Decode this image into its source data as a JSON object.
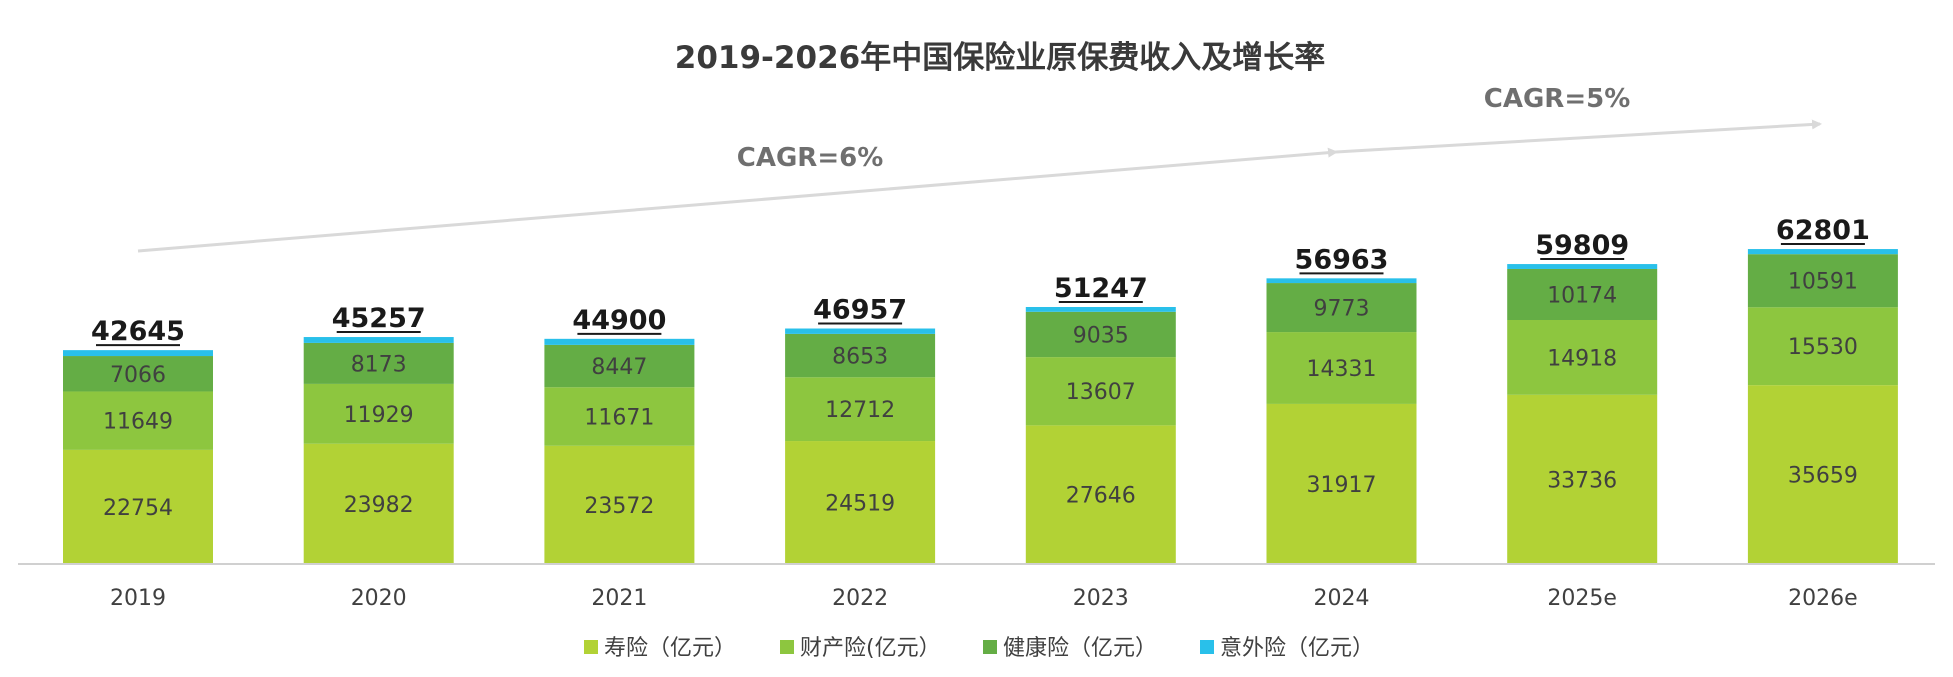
{
  "chart_data": {
    "type": "bar",
    "stacked": true,
    "title": "2019-2026年中国保险业原保费收入及增长率",
    "categories": [
      "2019",
      "2020",
      "2021",
      "2022",
      "2023",
      "2024",
      "2025e",
      "2026e"
    ],
    "series": [
      {
        "name": "寿险（亿元）",
        "color": "#b2d235",
        "values": [
          22754,
          23982,
          23572,
          24519,
          27646,
          31917,
          33736,
          35659
        ]
      },
      {
        "name": "财产险(亿元）",
        "color": "#8dc63f",
        "values": [
          11649,
          11929,
          11671,
          12712,
          13607,
          14331,
          14918,
          15530
        ]
      },
      {
        "name": "健康险（亿元）",
        "color": "#64ad45",
        "values": [
          7066,
          8173,
          8447,
          8653,
          9035,
          9773,
          10174,
          10591
        ]
      },
      {
        "name": "意外险（亿元）",
        "color": "#29c0ea",
        "values": [
          1176,
          1173,
          1210,
          1073,
          959,
          942,
          981,
          1021
        ]
      }
    ],
    "totals": [
      42645,
      45257,
      44900,
      46957,
      51247,
      56963,
      59809,
      62801
    ],
    "annotations": [
      {
        "text": "CAGR=6%",
        "from": "2019",
        "to": "2024"
      },
      {
        "text": "CAGR=5%",
        "from": "2024",
        "to": "2026e"
      }
    ],
    "legend_position": "bottom",
    "grid": false,
    "ylim": [
      0,
      70000
    ]
  }
}
